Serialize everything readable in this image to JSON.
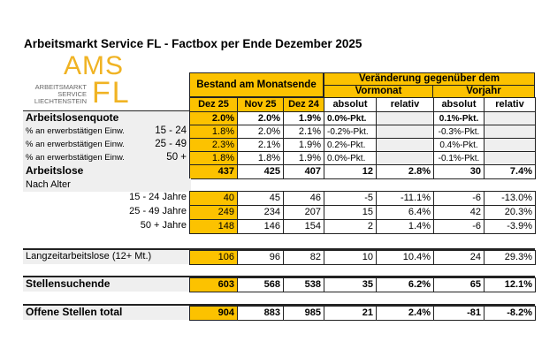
{
  "title": "Arbeitsmarkt Service FL - Factbox per Ende Dezember 2025",
  "logo": {
    "big1": "AMS",
    "big2": "FL",
    "sub": [
      "ARBEITSMARKT",
      "SERVICE",
      "LIECHTENSTEIN"
    ]
  },
  "colors": {
    "accent": "#fcc200",
    "logo": "#f0b323",
    "label_bg": "#efefef"
  },
  "header": {
    "bestand": "Bestand am Monatsende",
    "veraenderung": "Veränderung gegenüber dem",
    "vormonat": "Vormonat",
    "vorjahr": "Vorjahr",
    "columns": [
      "Dez 25",
      "Nov 25",
      "Dez 24",
      "absolut",
      "relativ",
      "absolut",
      "relativ"
    ]
  },
  "rows": [
    {
      "label": "Arbeitslosenquote",
      "sub": "",
      "bold": true,
      "values": [
        "2.0%",
        "2.0%",
        "1.9%",
        "0.0%-Pkt.",
        "",
        "0.1%-Pkt.",
        ""
      ]
    },
    {
      "label": "% an erwerbstätigen Einw.",
      "sub": "15 - 24",
      "bold": false,
      "values": [
        "1.8%",
        "2.0%",
        "2.1%",
        "-0.2%-Pkt.",
        "",
        "-0.3%-Pkt.",
        ""
      ]
    },
    {
      "label": "% an erwerbstätigen Einw.",
      "sub": "25 - 49",
      "bold": false,
      "values": [
        "2.3%",
        "2.1%",
        "1.9%",
        "0.2%-Pkt.",
        "",
        "0.4%-Pkt.",
        ""
      ]
    },
    {
      "label": "% an erwerbstätigen Einw.",
      "sub": "50 +",
      "bold": false,
      "values": [
        "1.8%",
        "1.8%",
        "1.9%",
        "0.0%-Pkt.",
        "",
        "-0.1%-Pkt.",
        ""
      ]
    },
    {
      "label": "Arbeitslose",
      "sub": "",
      "bold": true,
      "values": [
        "437",
        "425",
        "407",
        "12",
        "2.8%",
        "30",
        "7.4%"
      ]
    },
    {
      "label": "Nach Alter",
      "sub": "",
      "bold": false,
      "values": []
    },
    {
      "label": "",
      "sub": "15 - 24 Jahre",
      "bold": false,
      "values": [
        "40",
        "45",
        "46",
        "-5",
        "-11.1%",
        "-6",
        "-13.0%"
      ]
    },
    {
      "label": "",
      "sub": "25 - 49 Jahre",
      "bold": false,
      "values": [
        "249",
        "234",
        "207",
        "15",
        "6.4%",
        "42",
        "20.3%"
      ]
    },
    {
      "label": "",
      "sub": "50 + Jahre",
      "bold": false,
      "values": [
        "148",
        "146",
        "154",
        "2",
        "1.4%",
        "-6",
        "-3.9%"
      ]
    },
    {
      "label": "Langzeitarbeitslose (12+ Mt.)",
      "sub": "",
      "bold": false,
      "values": [
        "106",
        "96",
        "82",
        "10",
        "10.4%",
        "24",
        "29.3%"
      ]
    },
    {
      "label": "Stellensuchende",
      "sub": "",
      "bold": true,
      "values": [
        "603",
        "568",
        "538",
        "35",
        "6.2%",
        "65",
        "12.1%"
      ]
    },
    {
      "label": "Offene Stellen total",
      "sub": "",
      "bold": true,
      "values": [
        "904",
        "883",
        "985",
        "21",
        "2.4%",
        "-81",
        "-8.2%"
      ]
    }
  ]
}
